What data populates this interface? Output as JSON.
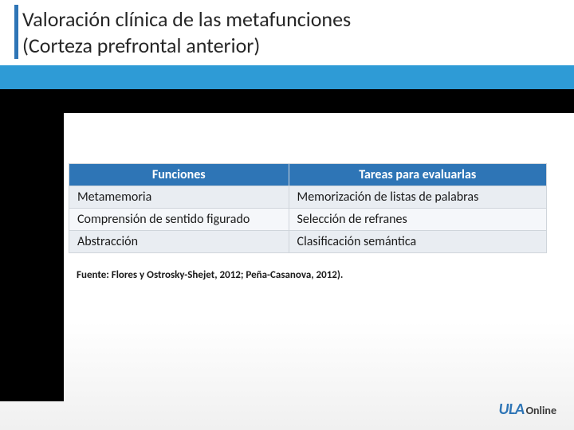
{
  "title": {
    "line1": "Valoración clínica de las metafunciones",
    "line2": "(Corteza prefrontal anterior)"
  },
  "table": {
    "columns": [
      "Funciones",
      "Tareas para evaluarlas"
    ],
    "rows": [
      [
        "Metamemoria",
        "Memorización de listas de palabras"
      ],
      [
        "Comprensión de sentido figurado",
        "Selección de refranes"
      ],
      [
        "Abstracción",
        "Clasificación semántica"
      ]
    ],
    "header_bg": "#2e75b6",
    "header_fg": "#ffffff",
    "row_bg_a": "#e9edf2",
    "row_bg_b": "#f5f7fa",
    "border_color": "#cfd5db",
    "font_size": 16
  },
  "source": "Fuente: Flores y Ostrosky-Shejet, 2012; Peña-Casanova, 2012).",
  "logo": {
    "brand": "ULA",
    "suffix": "Online",
    "brand_color": "#2e75b6",
    "suffix_color": "#3a3a3a"
  },
  "bands": {
    "blue": "#2e9bd6",
    "dark": "#000000"
  }
}
